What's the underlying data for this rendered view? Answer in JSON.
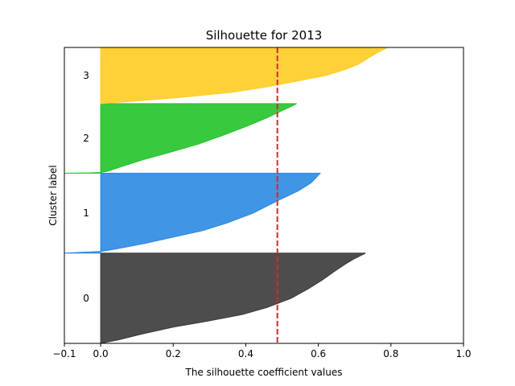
{
  "chart_data": {
    "type": "area",
    "title": "Silhouette for 2013",
    "xlabel": "The silhouette coefficient values",
    "ylabel": "Cluster label",
    "xlim": [
      -0.1,
      1.0
    ],
    "x_ticks": [
      -0.1,
      0.0,
      0.2,
      0.4,
      0.6,
      0.8,
      1.0
    ],
    "x_tick_labels": [
      "−0.1",
      "0.0",
      "0.2",
      "0.4",
      "0.6",
      "0.8",
      "1.0"
    ],
    "ylim": [
      0,
      1
    ],
    "mean_silhouette": 0.487,
    "mean_line_color": "#d62728",
    "clusters": [
      {
        "label": "0",
        "color": "#3a3a3a",
        "y_range": [
          0.0,
          0.305
        ],
        "profile": [
          [
            0.0,
            0.73
          ],
          [
            0.02,
            0.72
          ],
          [
            0.06,
            0.7
          ],
          [
            0.12,
            0.675
          ],
          [
            0.2,
            0.645
          ],
          [
            0.3,
            0.61
          ],
          [
            0.4,
            0.57
          ],
          [
            0.5,
            0.525
          ],
          [
            0.6,
            0.46
          ],
          [
            0.68,
            0.39
          ],
          [
            0.75,
            0.3
          ],
          [
            0.82,
            0.2
          ],
          [
            0.9,
            0.11
          ],
          [
            0.96,
            0.05
          ],
          [
            1.0,
            0.0
          ]
        ]
      },
      {
        "label": "1",
        "color": "#2b8ae2",
        "y_range": [
          0.305,
          0.575
        ],
        "profile": [
          [
            0.0,
            0.605
          ],
          [
            0.05,
            0.595
          ],
          [
            0.12,
            0.58
          ],
          [
            0.22,
            0.545
          ],
          [
            0.35,
            0.485
          ],
          [
            0.5,
            0.42
          ],
          [
            0.62,
            0.35
          ],
          [
            0.72,
            0.28
          ],
          [
            0.8,
            0.2
          ],
          [
            0.88,
            0.12
          ],
          [
            0.95,
            0.04
          ],
          [
            0.98,
            0.0
          ],
          [
            0.985,
            -0.03
          ],
          [
            1.0,
            -0.1
          ]
        ]
      },
      {
        "label": "2",
        "color": "#22c32a",
        "y_range": [
          0.575,
          0.81
        ],
        "profile": [
          [
            0.0,
            0.54
          ],
          [
            0.04,
            0.525
          ],
          [
            0.1,
            0.5
          ],
          [
            0.2,
            0.46
          ],
          [
            0.32,
            0.405
          ],
          [
            0.45,
            0.34
          ],
          [
            0.58,
            0.27
          ],
          [
            0.7,
            0.19
          ],
          [
            0.8,
            0.12
          ],
          [
            0.9,
            0.06
          ],
          [
            0.97,
            0.02
          ],
          [
            0.99,
            0.0
          ],
          [
            0.995,
            -0.03
          ],
          [
            1.0,
            -0.1
          ]
        ]
      },
      {
        "label": "3",
        "color": "#ffcc22",
        "y_range": [
          0.81,
          1.0
        ],
        "profile": [
          [
            0.0,
            0.79
          ],
          [
            0.05,
            0.775
          ],
          [
            0.12,
            0.755
          ],
          [
            0.2,
            0.735
          ],
          [
            0.3,
            0.71
          ],
          [
            0.4,
            0.67
          ],
          [
            0.5,
            0.62
          ],
          [
            0.6,
            0.54
          ],
          [
            0.7,
            0.46
          ],
          [
            0.8,
            0.36
          ],
          [
            0.9,
            0.2
          ],
          [
            0.96,
            0.08
          ],
          [
            1.0,
            0.0
          ]
        ]
      }
    ]
  }
}
